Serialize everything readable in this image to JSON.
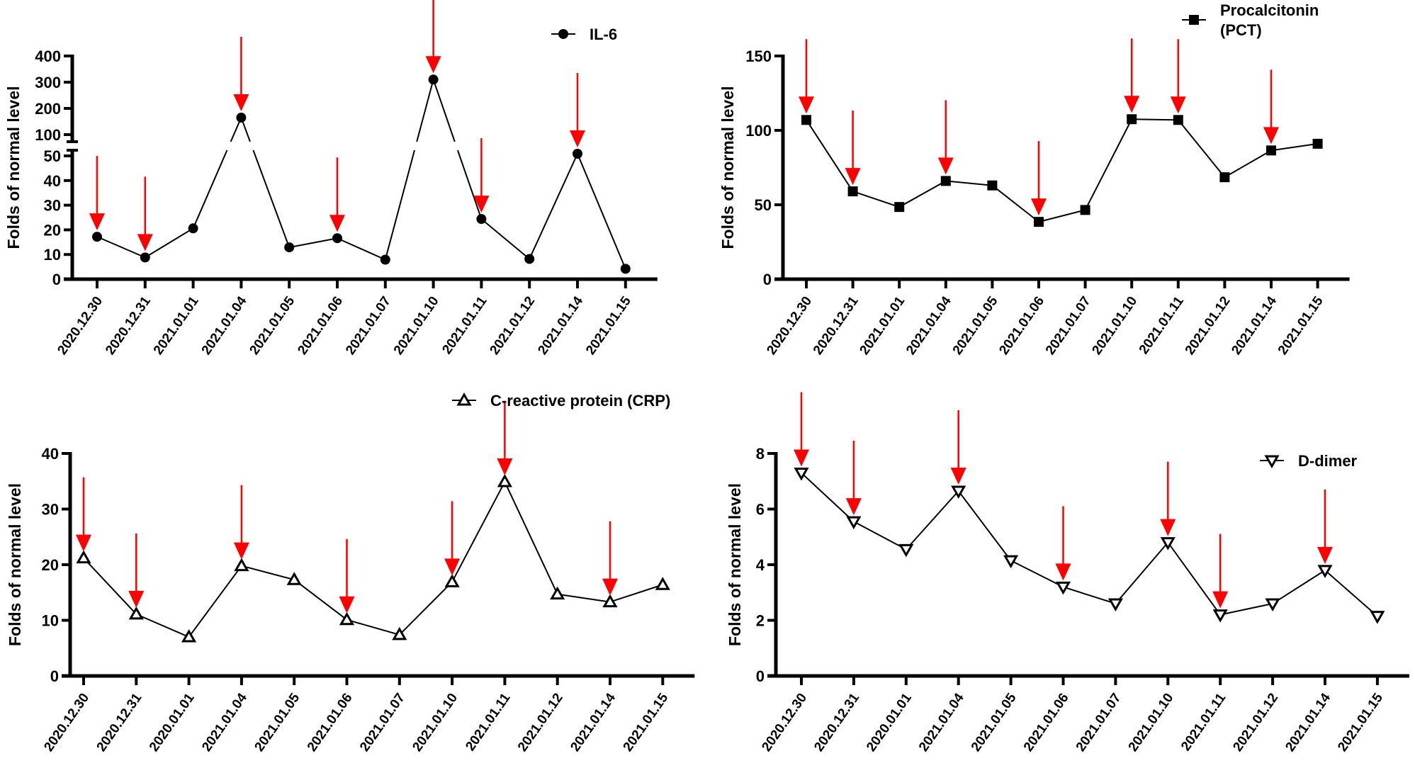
{
  "figure": {
    "colors": {
      "line": "#000000",
      "arrow": "#ff0000"
    }
  },
  "chart_data": [
    {
      "id": "il6",
      "type": "line",
      "title": "",
      "legend": {
        "label": "IL-6",
        "marker": "filled-circle",
        "position": "top-right"
      },
      "xlabel": "",
      "ylabel": "Folds of normal level",
      "categories": [
        "2020.12.30",
        "2020.12.31",
        "2021.01.01",
        "2021.01.04",
        "2021.01.05",
        "2021.01.06",
        "2021.01.07",
        "2021.01.10",
        "2021.01.11",
        "2021.01.12",
        "2021.01.14",
        "2021.01.15"
      ],
      "y_axis": {
        "broken": true,
        "lower_segment": {
          "range": [
            0,
            50
          ],
          "ticks": [
            "0",
            "10",
            "20",
            "30",
            "40",
            "50"
          ]
        },
        "upper_segment": {
          "range": [
            100,
            400
          ],
          "ticks": [
            "100",
            "200",
            "300",
            "400"
          ]
        }
      },
      "series": [
        {
          "name": "IL-6",
          "values": [
            17.2,
            8.8,
            20.6,
            165,
            12.9,
            16.6,
            7.9,
            310,
            24.4,
            8.2,
            55,
            4.2
          ]
        }
      ],
      "arrows_at": [
        "2020.12.30",
        "2020.12.31",
        "2021.01.04",
        "2021.01.06",
        "2021.01.10",
        "2021.01.11",
        "2021.01.14"
      ]
    },
    {
      "id": "pct",
      "type": "line",
      "title": "",
      "legend": {
        "label": "Procalcitonin (PCT)",
        "label_lines": [
          "Procalcitonin",
          "(PCT)"
        ],
        "marker": "filled-square",
        "position": "top-right"
      },
      "xlabel": "",
      "ylabel": "Folds of normal level",
      "categories": [
        "2020.12.30",
        "2020.12.31",
        "2021.01.01",
        "2021.01.04",
        "2021.01.05",
        "2021.01.06",
        "2021.01.07",
        "2021.01.10",
        "2021.01.11",
        "2021.01.12",
        "2021.01.14",
        "2021.01.15"
      ],
      "ylim": [
        0,
        150
      ],
      "yticks": [
        "0",
        "50",
        "100",
        "150"
      ],
      "series": [
        {
          "name": "Procalcitonin (PCT)",
          "values": [
            107,
            59,
            48.5,
            66,
            63,
            38.5,
            46.5,
            107.5,
            107,
            68.5,
            86.5,
            91
          ]
        }
      ],
      "arrows_at": [
        "2020.12.30",
        "2020.12.31",
        "2021.01.04",
        "2021.01.06",
        "2021.01.10",
        "2021.01.11",
        "2021.01.14"
      ]
    },
    {
      "id": "crp",
      "type": "line",
      "title": "",
      "legend": {
        "label": "C-reactive protein (CRP)",
        "marker": "open-triangle-up",
        "position": "top"
      },
      "xlabel": "",
      "ylabel": "Folds of normal level",
      "categories": [
        "2020.12.30",
        "2020.12.31",
        "2020.01.01",
        "2021.01.04",
        "2021.01.05",
        "2021.01.06",
        "2021.01.07",
        "2021.01.10",
        "2021.01.11",
        "2021.01.12",
        "2021.01.14",
        "2021.01.15"
      ],
      "ylim": [
        0,
        40
      ],
      "yticks": [
        "0",
        "10",
        "20",
        "30",
        "40"
      ],
      "series": [
        {
          "name": "C-reactive protein (CRP)",
          "values": [
            21.2,
            11.1,
            7.0,
            19.8,
            17.3,
            10.1,
            7.4,
            16.9,
            34.9,
            14.7,
            13.3,
            16.4
          ]
        }
      ],
      "arrows_at": [
        "2020.12.30",
        "2020.12.31",
        "2021.01.04",
        "2021.01.06",
        "2021.01.10",
        "2021.01.11",
        "2021.01.14"
      ]
    },
    {
      "id": "ddimer",
      "type": "line",
      "title": "",
      "legend": {
        "label": "D-dimer",
        "marker": "open-triangle-down",
        "position": "top-right"
      },
      "xlabel": "",
      "ylabel": "Folds of normal level",
      "categories": [
        "2020.12.30",
        "2020.12.31",
        "2020.01.01",
        "2021.01.04",
        "2021.01.05",
        "2021.01.06",
        "2021.01.07",
        "2021.01.10",
        "2021.01.11",
        "2021.01.12",
        "2021.01.14",
        "2021.01.15"
      ],
      "ylim": [
        0,
        8
      ],
      "yticks": [
        "0",
        "2",
        "4",
        "6",
        "8"
      ],
      "series": [
        {
          "name": "D-dimer",
          "values": [
            7.3,
            5.55,
            4.55,
            6.65,
            4.15,
            3.2,
            2.6,
            4.8,
            2.2,
            2.6,
            3.8,
            2.15
          ]
        }
      ],
      "arrows_at": [
        "2020.12.30",
        "2020.12.31",
        "2021.01.04",
        "2021.01.06",
        "2021.01.10",
        "2021.01.11",
        "2021.01.14"
      ]
    }
  ]
}
